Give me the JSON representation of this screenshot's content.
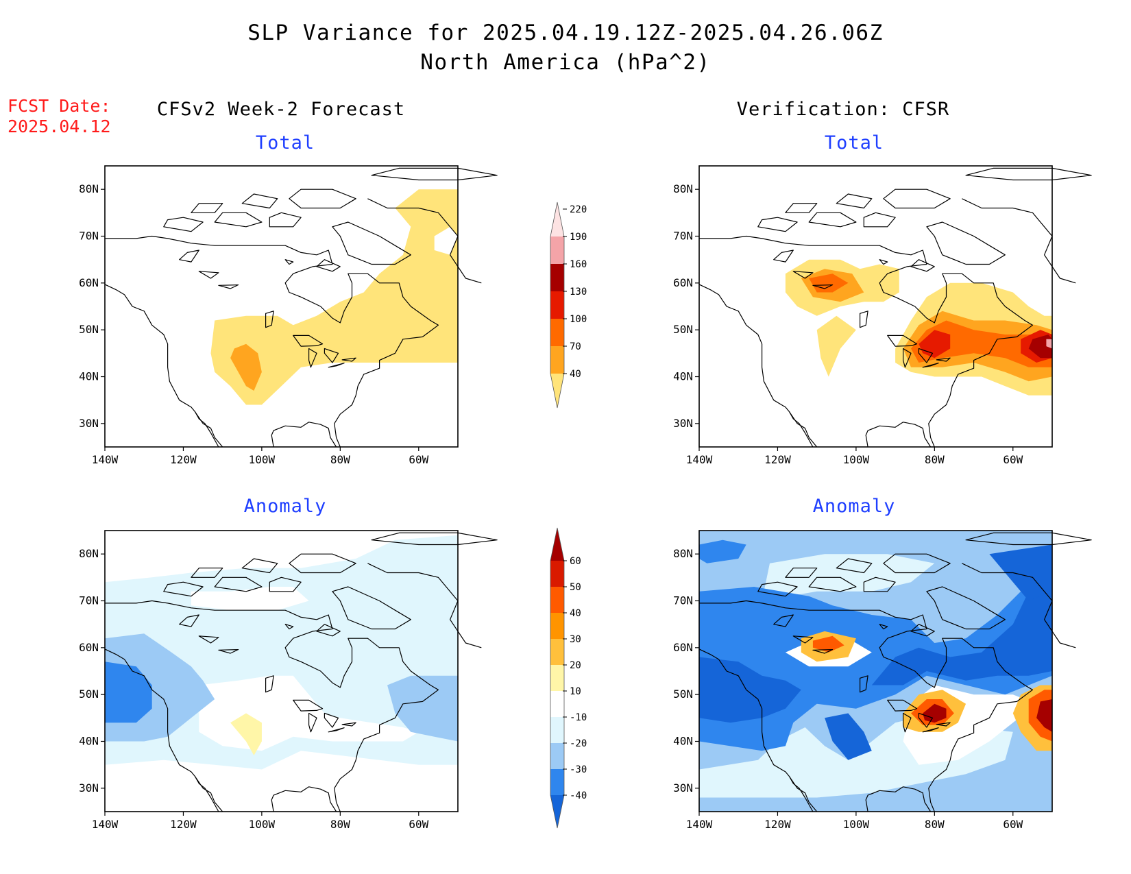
{
  "title": "SLP Variance for 2025.04.19.12Z-2025.04.26.06Z",
  "subtitle": "North America (hPa^2)",
  "fcst_label": "FCST Date:",
  "fcst_date": "2025.04.12",
  "columns": {
    "left": "CFSv2 Week-2 Forecast",
    "right": "Verification: CFSR"
  },
  "panel_titles": {
    "total": "Total",
    "anomaly": "Anomaly"
  },
  "axes": {
    "lon_labels": [
      "140W",
      "120W",
      "100W",
      "80W",
      "60W"
    ],
    "lat_labels": [
      "80N",
      "70N",
      "60N",
      "50N",
      "40N",
      "30N"
    ]
  },
  "colorbars": {
    "total": {
      "levels": [
        "40",
        "70",
        "100",
        "130",
        "160",
        "190",
        "220"
      ],
      "colors": [
        "#ffe47a",
        "#ffa51f",
        "#ff6a00",
        "#e61a00",
        "#a50000",
        "#f4a4a8",
        "#fde3e3"
      ]
    },
    "anomaly": {
      "levels": [
        "-40",
        "-30",
        "-20",
        "-10",
        "10",
        "20",
        "30",
        "40",
        "50",
        "60"
      ],
      "colors": [
        "#1565d8",
        "#2f86ee",
        "#9ccaf5",
        "#e0f6fd",
        "#ffffff",
        "#fff6a8",
        "#ffc03c",
        "#ff9400",
        "#ff5a00",
        "#d91a00",
        "#a50000"
      ]
    }
  },
  "colors": {
    "title_text": "#000000",
    "fcst_text": "#ff1a1a",
    "panel_title_text": "#1f3fff"
  }
}
